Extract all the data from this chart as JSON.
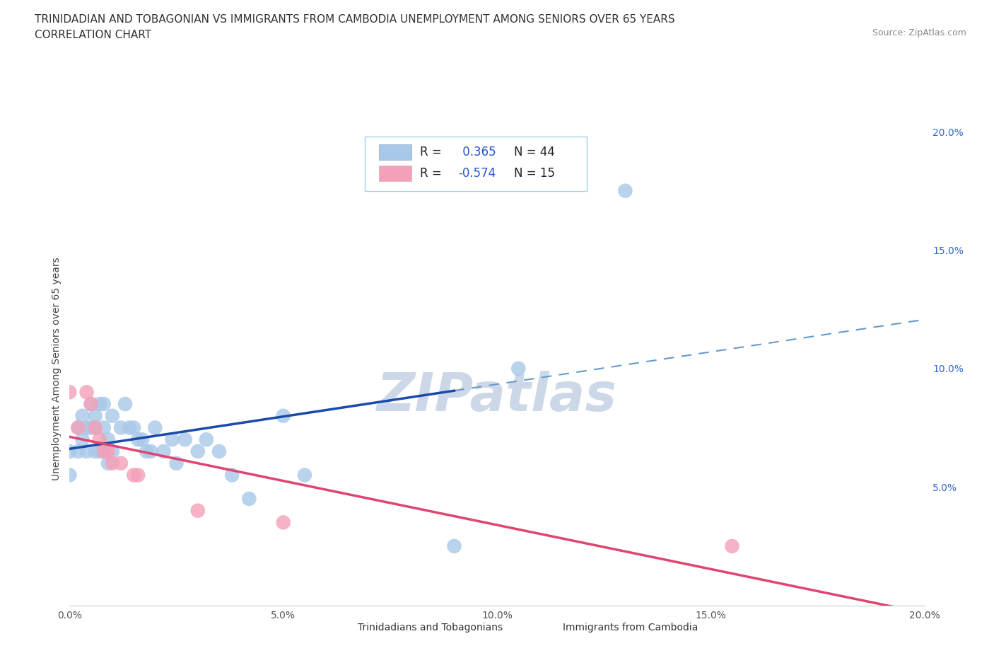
{
  "title_line1": "TRINIDADIAN AND TOBAGONIAN VS IMMIGRANTS FROM CAMBODIA UNEMPLOYMENT AMONG SENIORS OVER 65 YEARS",
  "title_line2": "CORRELATION CHART",
  "source_text": "Source: ZipAtlas.com",
  "ylabel": "Unemployment Among Seniors over 65 years",
  "xlim": [
    0.0,
    0.2
  ],
  "ylim": [
    0.0,
    0.2
  ],
  "xtick_labels": [
    "0.0%",
    "5.0%",
    "10.0%",
    "15.0%",
    "20.0%"
  ],
  "xtick_vals": [
    0.0,
    0.05,
    0.1,
    0.15,
    0.2
  ],
  "ytick_labels": [
    "5.0%",
    "10.0%",
    "15.0%",
    "20.0%"
  ],
  "ytick_vals_right": [
    0.05,
    0.1,
    0.15,
    0.2
  ],
  "blue_R": 0.365,
  "blue_N": 44,
  "pink_R": -0.574,
  "pink_N": 15,
  "blue_scatter_x": [
    0.0,
    0.0,
    0.002,
    0.002,
    0.003,
    0.003,
    0.004,
    0.004,
    0.005,
    0.005,
    0.006,
    0.006,
    0.006,
    0.007,
    0.007,
    0.008,
    0.008,
    0.009,
    0.009,
    0.01,
    0.01,
    0.012,
    0.013,
    0.014,
    0.015,
    0.016,
    0.017,
    0.018,
    0.019,
    0.02,
    0.022,
    0.024,
    0.025,
    0.027,
    0.03,
    0.032,
    0.035,
    0.038,
    0.042,
    0.05,
    0.055,
    0.09,
    0.105,
    0.13
  ],
  "blue_scatter_y": [
    0.065,
    0.055,
    0.075,
    0.065,
    0.08,
    0.07,
    0.075,
    0.065,
    0.085,
    0.075,
    0.08,
    0.075,
    0.065,
    0.085,
    0.065,
    0.085,
    0.075,
    0.07,
    0.06,
    0.08,
    0.065,
    0.075,
    0.085,
    0.075,
    0.075,
    0.07,
    0.07,
    0.065,
    0.065,
    0.075,
    0.065,
    0.07,
    0.06,
    0.07,
    0.065,
    0.07,
    0.065,
    0.055,
    0.045,
    0.08,
    0.055,
    0.025,
    0.1,
    0.175
  ],
  "pink_scatter_x": [
    0.0,
    0.002,
    0.004,
    0.005,
    0.006,
    0.007,
    0.008,
    0.009,
    0.01,
    0.012,
    0.015,
    0.016,
    0.03,
    0.05,
    0.155
  ],
  "pink_scatter_y": [
    0.09,
    0.075,
    0.09,
    0.085,
    0.075,
    0.07,
    0.065,
    0.065,
    0.06,
    0.06,
    0.055,
    0.055,
    0.04,
    0.035,
    0.025
  ],
  "blue_color": "#a8c8e8",
  "pink_color": "#f4a0b8",
  "blue_line_color": "#1a4aaa",
  "pink_line_color": "#e04470",
  "blue_dash_color": "#6699cc",
  "background_color": "#ffffff",
  "grid_color": "#c8ddf0",
  "watermark_color": "#ccd8e8",
  "blue_line_x_end": 0.09,
  "title_fontsize": 11,
  "axis_label_fontsize": 10,
  "tick_fontsize": 10,
  "legend_fontsize": 12
}
